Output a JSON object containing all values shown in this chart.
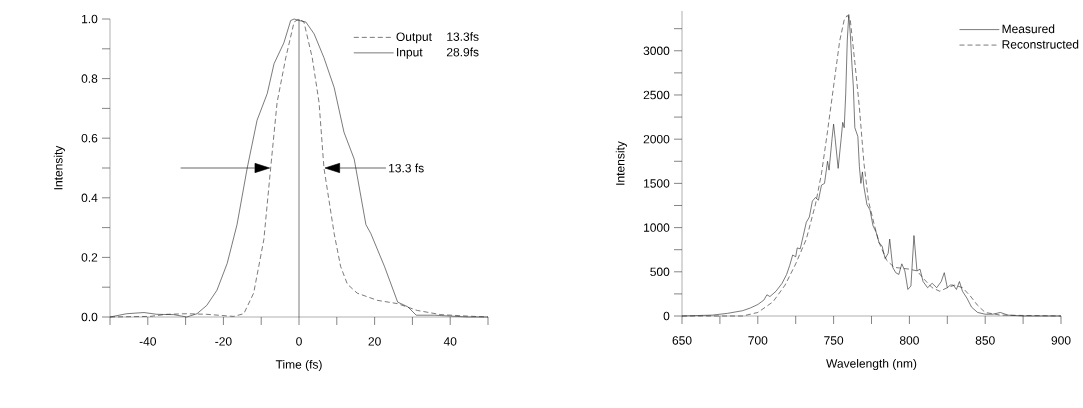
{
  "chart_data": [
    {
      "type": "line",
      "xlabel": "Time (fs)",
      "ylabel": "Intensity",
      "xlim": [
        -50,
        50
      ],
      "ylim": [
        0,
        1.0
      ],
      "xticks": [
        {
          "value": -50,
          "label": null
        },
        -40,
        {
          "value": -30,
          "label": null
        },
        -20,
        {
          "value": -10,
          "label": null
        },
        0,
        {
          "value": 10,
          "label": null
        },
        20,
        {
          "value": 30,
          "label": null
        },
        40,
        {
          "value": 50,
          "label": null
        }
      ],
      "yticks": [
        {
          "value": 0,
          "label": "0.0"
        },
        {
          "value": 0.1,
          "label": null
        },
        0.2,
        {
          "value": 0.3,
          "label": null
        },
        0.4,
        {
          "value": 0.5,
          "label": null
        },
        0.6,
        {
          "value": 0.7,
          "label": null
        },
        0.8,
        {
          "value": 0.9,
          "label": null
        },
        {
          "value": 1,
          "label": "1.0"
        }
      ],
      "legend": "top right",
      "grid": false,
      "marker": "none",
      "ref_lines": [
        {
          "axis": "x",
          "value": 0,
          "color": "#222222",
          "line_style": "solid"
        }
      ],
      "annotations": [
        "13.3 fs",
        "13.3fs",
        "28.9fs"
      ],
      "series": [
        {
          "name": "Output",
          "color": "#222222",
          "line_style": "dashed",
          "x": [
            -50,
            -39.4,
            -35,
            -29.7,
            -24.4,
            -17.3,
            -14.6,
            -12,
            -9.3,
            -7.5,
            -5.8,
            -3.5,
            -1.3,
            0,
            1.3,
            3.5,
            5.3,
            6.6,
            9.3,
            11,
            12.8,
            15.4,
            20.7,
            26,
            31.3,
            37.5,
            44.6,
            50
          ],
          "values": [
            0,
            0.002,
            0.009,
            0.011,
            0.009,
            0.002,
            0.011,
            0.08,
            0.26,
            0.5,
            0.72,
            0.87,
            0.99,
            1.0,
            0.99,
            0.87,
            0.72,
            0.5,
            0.28,
            0.17,
            0.11,
            0.08,
            0.056,
            0.045,
            0.022,
            0.008,
            0.003,
            0
          ]
        },
        {
          "name": "Input",
          "color": "#222222",
          "line_style": "solid",
          "x": [
            -50,
            -45.6,
            -41,
            -37.6,
            -33.2,
            -29.7,
            -27,
            -24.4,
            -21.7,
            -19,
            -16.4,
            -13.7,
            -11.1,
            -8.4,
            -6.6,
            -4,
            -2.2,
            -1.3,
            0,
            1.8,
            4,
            6.6,
            9.3,
            11.9,
            14.6,
            17.7,
            19,
            22.6,
            26.1,
            28.8,
            31,
            35.8,
            44.6,
            50
          ],
          "values": [
            0,
            0.011,
            0.015,
            0.009,
            0.008,
            0,
            0.011,
            0.039,
            0.09,
            0.18,
            0.31,
            0.5,
            0.66,
            0.75,
            0.85,
            0.92,
            0.995,
            1.0,
            0.995,
            0.99,
            0.95,
            0.87,
            0.77,
            0.62,
            0.53,
            0.31,
            0.28,
            0.17,
            0.05,
            0.034,
            0.006,
            0.006,
            0,
            0
          ]
        }
      ]
    },
    {
      "type": "line",
      "xlabel": "Wavelength (nm)",
      "ylabel": "Intensity",
      "xlim": [
        650,
        900
      ],
      "ylim": [
        0,
        3450
      ],
      "xticks": [
        650,
        {
          "value": 675,
          "label": null
        },
        700,
        {
          "value": 725,
          "label": null
        },
        750,
        {
          "value": 775,
          "label": null
        },
        800,
        {
          "value": 825,
          "label": null
        },
        850,
        {
          "value": 875,
          "label": null
        },
        900
      ],
      "yticks": [
        0,
        {
          "value": 250,
          "label": null
        },
        500,
        {
          "value": 750,
          "label": null
        },
        1000,
        {
          "value": 1250,
          "label": null
        },
        1500,
        {
          "value": 1750,
          "label": null
        },
        2000,
        {
          "value": 2250,
          "label": null
        },
        2500,
        {
          "value": 2750,
          "label": null
        },
        3000,
        {
          "value": 3250,
          "label": null
        }
      ],
      "legend": "top right",
      "grid": false,
      "marker": "none",
      "series": [
        {
          "name": "Measured",
          "color": "#222222",
          "line_style": "solid",
          "x": [
            650,
            670,
            680,
            690,
            695,
            700,
            704,
            706,
            708,
            712,
            716,
            719,
            721,
            723,
            725,
            726,
            728,
            730,
            732,
            734,
            736,
            738,
            740,
            742,
            744,
            746,
            747,
            749,
            750,
            751,
            753,
            755,
            756,
            757,
            758,
            759,
            760,
            761,
            762,
            763,
            764,
            766,
            767,
            768,
            769,
            770,
            772,
            774,
            776,
            778,
            780,
            782,
            784,
            786,
            787,
            789,
            791,
            793,
            795,
            797,
            799,
            801,
            803,
            805,
            807,
            809,
            812,
            815,
            818,
            821,
            823,
            825,
            827,
            829,
            831,
            833,
            835,
            838,
            841,
            845,
            850,
            855,
            860,
            865,
            875,
            900
          ],
          "values": [
            0,
            10,
            30,
            60,
            90,
            130,
            180,
            240,
            220,
            280,
            370,
            470,
            570,
            690,
            670,
            770,
            760,
            910,
            1060,
            1120,
            1300,
            1340,
            1310,
            1480,
            1500,
            1750,
            1650,
            2010,
            2170,
            2010,
            1670,
            2010,
            2190,
            2130,
            2520,
            3110,
            3410,
            3190,
            2870,
            2600,
            2130,
            2030,
            1690,
            1500,
            1630,
            1460,
            1260,
            1200,
            1020,
            950,
            830,
            790,
            650,
            710,
            870,
            550,
            490,
            470,
            590,
            510,
            300,
            340,
            910,
            510,
            530,
            390,
            320,
            370,
            320,
            390,
            490,
            320,
            350,
            350,
            300,
            390,
            280,
            200,
            100,
            40,
            20,
            20,
            40,
            10,
            0,
            0
          ]
        },
        {
          "name": "Reconstructed",
          "color": "#222222",
          "line_style": "dashed",
          "x": [
            650,
            690,
            700,
            710,
            718,
            725,
            732,
            738,
            742,
            746,
            750,
            754,
            757,
            759,
            761,
            764,
            767,
            770,
            773,
            777,
            780,
            785,
            790,
            800,
            805,
            810,
            815,
            820,
            825,
            830,
            835,
            840,
            845,
            850,
            860,
            900
          ],
          "values": [
            0,
            0,
            40,
            160,
            350,
            590,
            870,
            1260,
            1610,
            2090,
            2600,
            3110,
            3350,
            3400,
            3350,
            2870,
            2360,
            1730,
            1300,
            1020,
            830,
            630,
            550,
            530,
            510,
            410,
            320,
            280,
            320,
            350,
            320,
            230,
            120,
            40,
            10,
            0
          ]
        }
      ]
    }
  ]
}
